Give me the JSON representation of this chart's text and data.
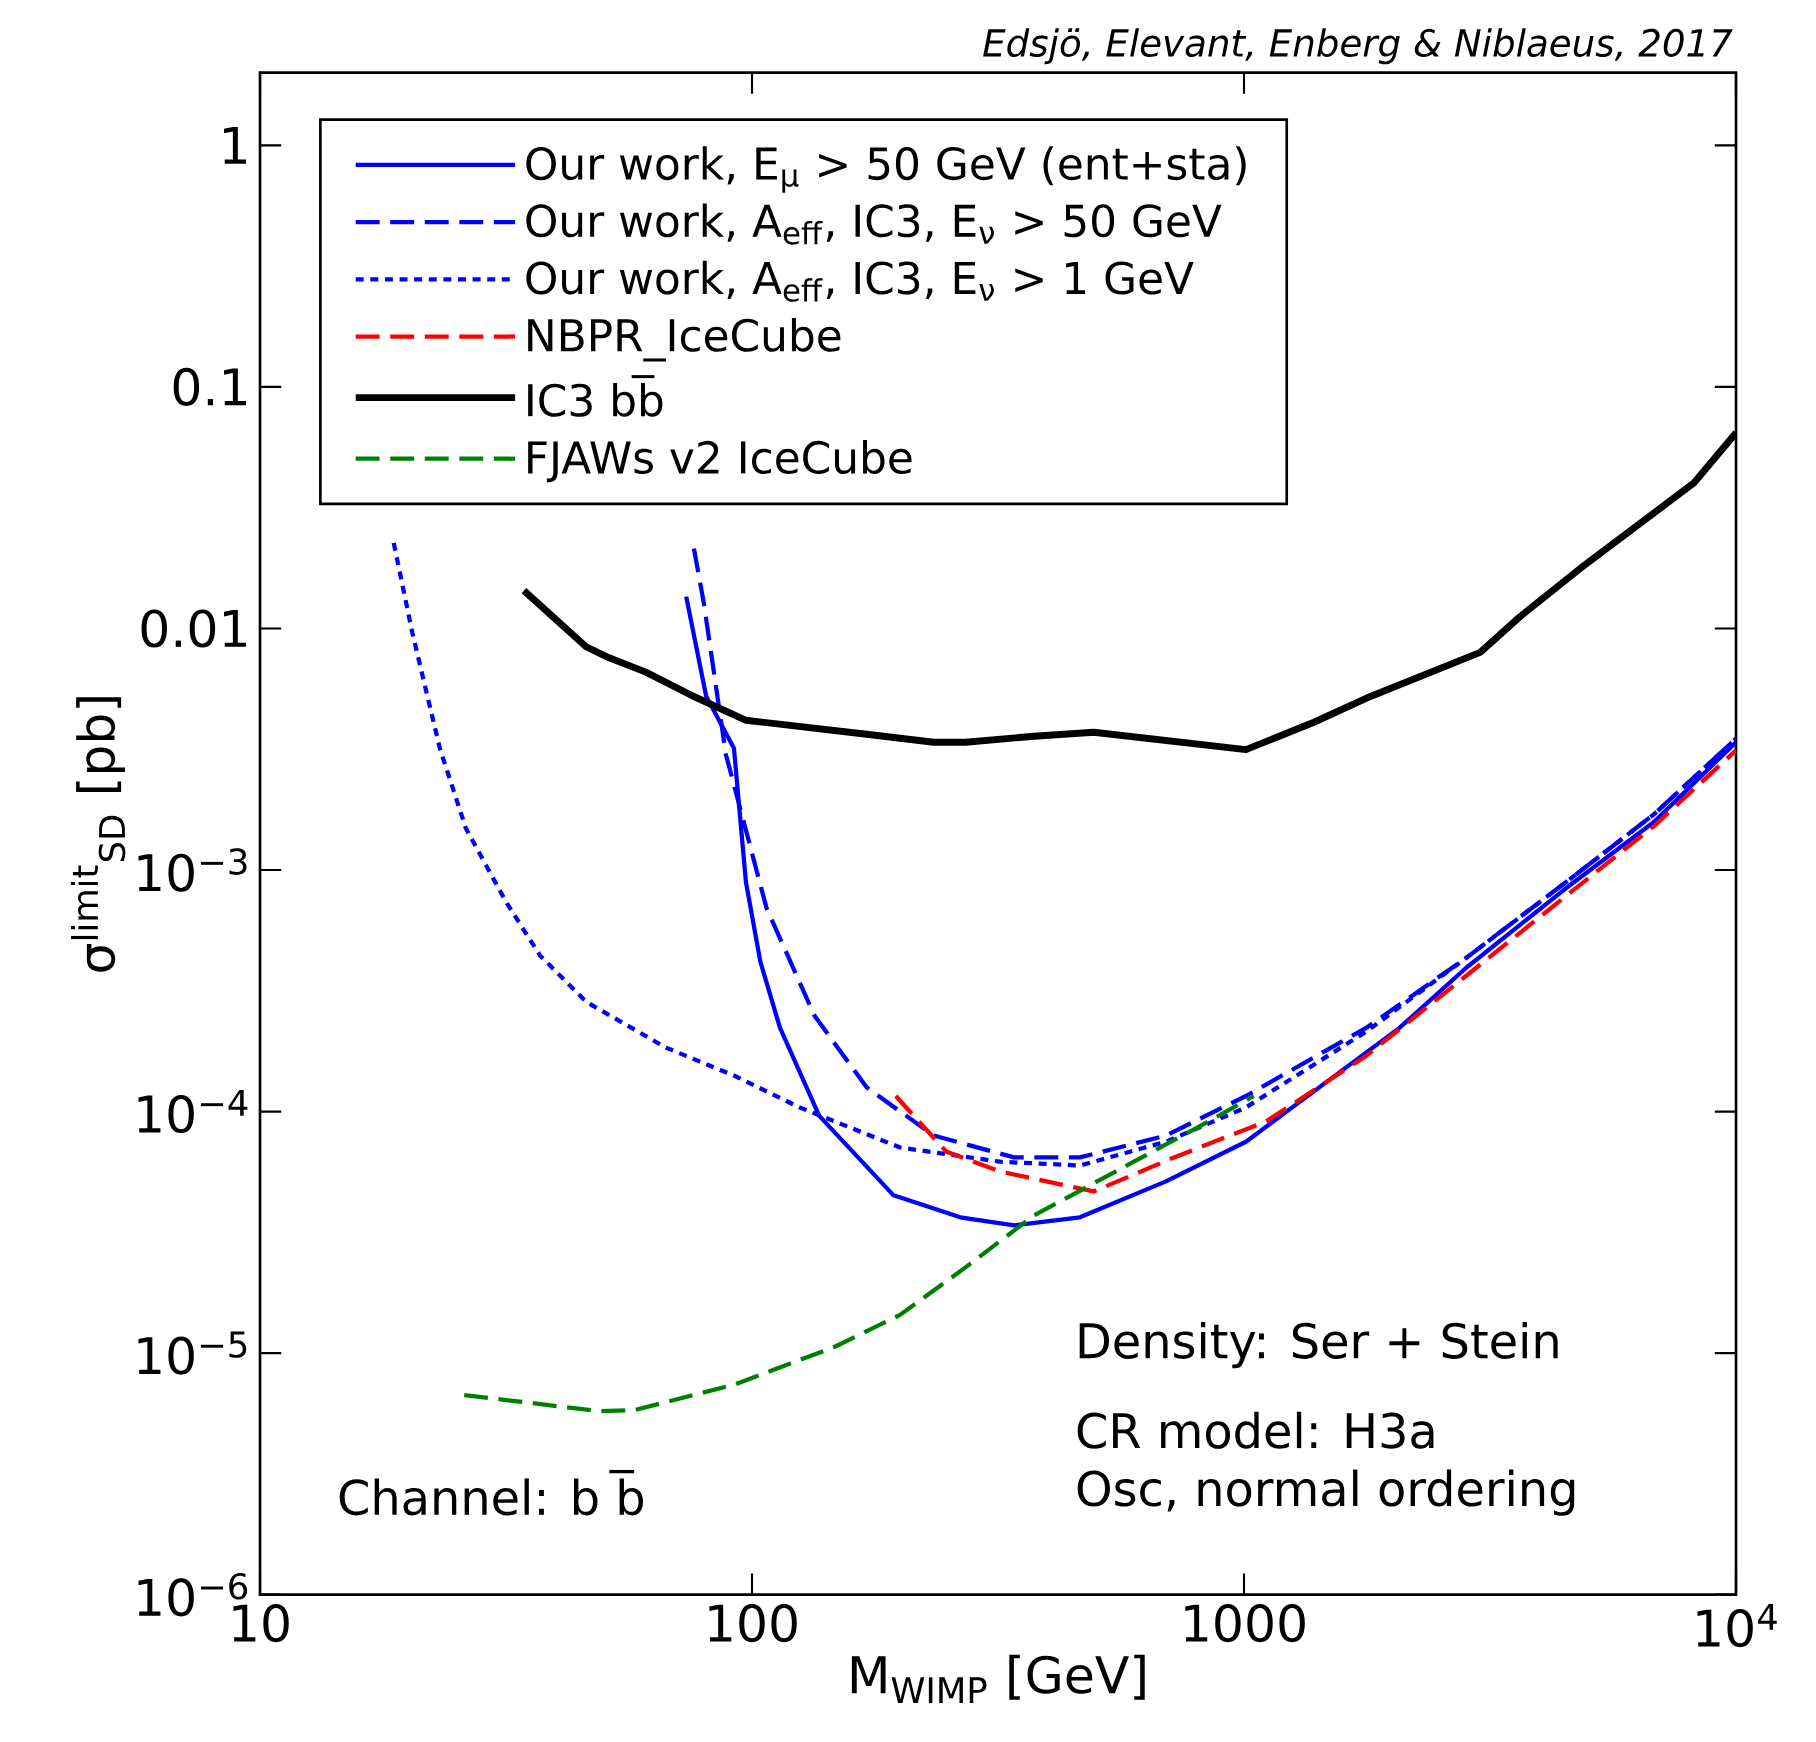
{
  "chart_data": {
    "type": "line",
    "xlabel": "M$_{WIMP}$ [GeV]",
    "ylabel": "σ$^{limit}$$_{SD}$ [pb]",
    "log": "xy",
    "xlim": [
      10,
      10000
    ],
    "ylim": [
      1e-06,
      2
    ],
    "xticks": [
      10,
      100,
      1000,
      {
        "value": 10000,
        "label": "10$^{4}$"
      }
    ],
    "yticks": [
      {
        "value": 1e-06,
        "label": "10$^{−6}$"
      },
      {
        "value": 1e-05,
        "label": "10$^{−5}$"
      },
      {
        "value": 0.0001,
        "label": "10$^{−4}$"
      },
      {
        "value": 0.001,
        "label": "10$^{−3}$"
      },
      0.01,
      0.1,
      1
    ],
    "legend": "top left",
    "annotations": [
      "*Edsjö, Elevant, Enberg & Niblaeus, 2017*",
      "Density: Ser + Stein",
      "CR model: H3a",
      "Osc, normal ordering",
      "Channel: b b̅"
    ],
    "series": [
      {
        "name": "Our work, E$_{μ}$ > 50 GeV (ent+sta)",
        "color": "#0000ff",
        "line_style": "solid",
        "x": [
          73.5,
          80.7,
          91.9,
          97.2,
          104,
          114,
          137,
          194,
          265,
          341,
          464,
          694,
          1009,
          2070,
          2830,
          4510,
          6810,
          10000
        ],
        "values": [
          0.01355,
          0.00524,
          0.00319,
          0.00089,
          0.000417,
          0.000222,
          9.6e-05,
          4.5e-05,
          3.65e-05,
          3.38e-05,
          3.65e-05,
          5.14e-05,
          7.5e-05,
          0.000222,
          0.000394,
          0.00084,
          0.00158,
          0.00338
        ]
      },
      {
        "name": "Our work, A$_{eff}$, IC3, E$_{ν}$ > 50 GeV",
        "color": "#0000ff",
        "line_style": "dashed",
        "x": [
          76.2,
          79.8,
          88.5,
          107,
          134,
          171,
          234,
          341,
          464,
          694,
          1009,
          1771,
          2830,
          4510,
          6810,
          10000
        ],
        "values": [
          0.0214,
          0.0128,
          0.00301,
          0.000697,
          0.000249,
          0.000126,
          7.96e-05,
          6.46e-05,
          6.46e-05,
          7.96e-05,
          0.000116,
          0.000222,
          0.000433,
          0.00089,
          0.0017,
          0.0035
        ]
      },
      {
        "name": "Our work, A$_{eff}$, IC3, E$_{ν}$ > 1 GeV",
        "color": "#0000ff",
        "line_style": "dotted",
        "x": [
          18.7,
          20.4,
          23.2,
          26.2,
          31.6,
          37.1,
          46,
          66.8,
          91.9,
          125,
          200,
          319,
          464,
          694,
          1009,
          1771,
          2830,
          4510,
          6810,
          10000
        ],
        "values": [
          0.0226,
          0.0096,
          0.00319,
          0.00149,
          0.00074,
          0.000442,
          0.000285,
          0.000184,
          0.000141,
          0.000104,
          7.1e-05,
          6.2e-05,
          5.98e-05,
          7.5e-05,
          0.000104,
          0.000214,
          0.000433,
          0.00089,
          0.0017,
          0.0035
        ]
      },
      {
        "name": "NBPR_IceCube",
        "color": "#ff0000",
        "line_style": "dashed",
        "x": [
          196,
          248,
          319,
          495,
          721,
          1109,
          1771,
          2830,
          4510,
          6810,
          10000
        ],
        "values": [
          0.000116,
          6.84e-05,
          5.65e-05,
          4.67e-05,
          6.46e-05,
          9.1e-05,
          0.00017,
          0.000365,
          0.00078,
          0.00152,
          0.00313
        ]
      },
      {
        "name": "IC3 bb̅",
        "color": "#000000",
        "line_style": "solid",
        "x": [
          34.4,
          46,
          50.5,
          61,
          76,
          97,
          171,
          234,
          272,
          374,
          495,
          1009,
          1387,
          1771,
          3020,
          3640,
          4820,
          8220,
          10000
        ],
        "values": [
          0.01435,
          0.0084,
          0.00766,
          0.00658,
          0.00524,
          0.00417,
          0.00365,
          0.00338,
          0.00338,
          0.00358,
          0.00372,
          0.00315,
          0.00409,
          0.00514,
          0.00796,
          0.0112,
          0.0177,
          0.0401,
          0.0646
        ]
      },
      {
        "name": "FJAWs v2 IceCube",
        "color": "#008000",
        "line_style": "dashed",
        "x": [
          26,
          49.1,
          57.5,
          91.9,
          147,
          200,
          272,
          374,
          597,
          814,
          1047
        ],
        "values": [
          6.7e-06,
          5.75e-06,
          5.8e-06,
          7.4e-06,
          1.06e-05,
          1.44e-05,
          2.27e-05,
          3.71e-05,
          6.2e-05,
          8.7e-05,
          0.000116
        ]
      }
    ]
  }
}
